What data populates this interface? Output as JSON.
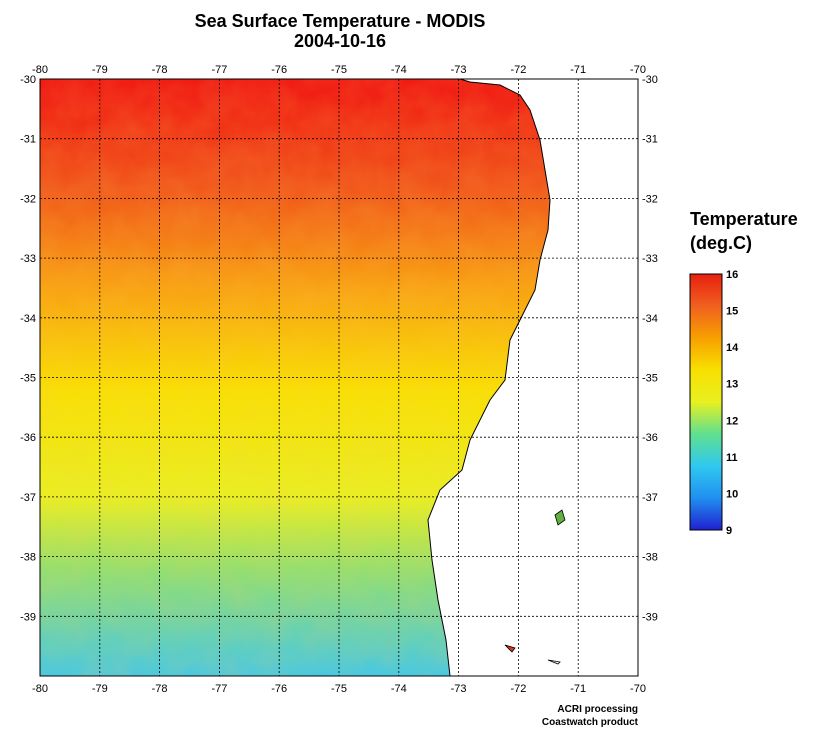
{
  "map": {
    "title": "Sea Surface Temperature - MODIS",
    "date": "2004-10-16",
    "longitude_ticks": [
      "-80",
      "-79",
      "-78",
      "-77",
      "-76",
      "-75",
      "-74",
      "-73",
      "-72",
      "-71",
      "-70"
    ],
    "latitude_ticks": [
      "-30",
      "-31",
      "-32",
      "-33",
      "-34",
      "-35",
      "-36",
      "-37",
      "-38",
      "-39"
    ],
    "lon_range": [
      -80,
      -70
    ],
    "lat_range": [
      -40,
      -30
    ],
    "grid": "dotted",
    "land_color": "#ffffff",
    "coastline_color": "#000000"
  },
  "colorbar": {
    "title_line1": "Temperature",
    "title_line2": "(deg.C)",
    "labels": [
      "16",
      "15",
      "14",
      "13",
      "12",
      "11",
      "10",
      "9"
    ],
    "min": 9,
    "max": 16,
    "colors": [
      "#2020d0",
      "#2090f0",
      "#30c8f0",
      "#60e090",
      "#e8f020",
      "#f8e000",
      "#f8a000",
      "#f06020",
      "#e82010"
    ]
  },
  "credits": {
    "line1": "ACRI processing",
    "line2": "Coastwatch product"
  }
}
